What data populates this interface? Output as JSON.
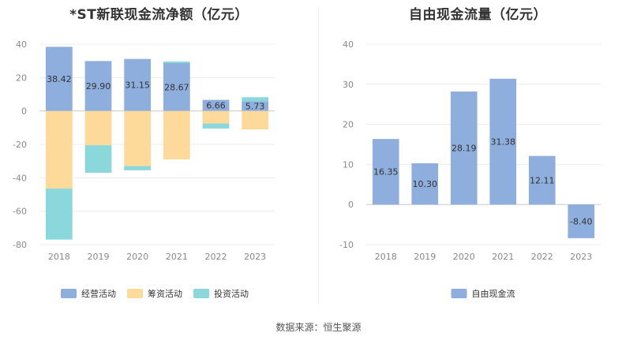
{
  "chart_data": [
    {
      "type": "bar",
      "stacked": true,
      "title": "*ST新联现金流净额（亿元）",
      "categories": [
        "2018",
        "2019",
        "2020",
        "2021",
        "2022",
        "2023"
      ],
      "ylim": [
        -80,
        40
      ],
      "yticks": [
        40,
        20,
        0,
        -20,
        -40,
        -60,
        -80
      ],
      "grid": true,
      "legend_position": "bottom",
      "series": [
        {
          "name": "经营活动",
          "color": "#8eaedd",
          "values": [
            38.42,
            29.9,
            31.15,
            28.67,
            6.66,
            5.73
          ],
          "labels": [
            "38.42",
            "29.90",
            "31.15",
            "28.67",
            "6.66",
            "5.73"
          ]
        },
        {
          "name": "筹资活动",
          "color": "#fdd99a",
          "values": [
            -46.5,
            -20.5,
            -33.0,
            -29.0,
            -7.5,
            -11.0
          ]
        },
        {
          "name": "投资活动",
          "color": "#8ad8dc",
          "values": [
            -30.5,
            -16.5,
            -2.5,
            1.0,
            -3.0,
            2.5
          ]
        }
      ]
    },
    {
      "type": "bar",
      "title": "自由现金流量（亿元）",
      "categories": [
        "2018",
        "2019",
        "2020",
        "2021",
        "2022",
        "2023"
      ],
      "ylim": [
        -10,
        40
      ],
      "yticks": [
        40,
        30,
        20,
        10,
        0,
        -10
      ],
      "grid": true,
      "legend_position": "bottom",
      "series": [
        {
          "name": "自由现金流",
          "color": "#8eaedd",
          "values": [
            16.35,
            10.3,
            28.19,
            31.38,
            12.11,
            -8.4
          ],
          "labels": [
            "16.35",
            "10.30",
            "28.19",
            "31.38",
            "12.11",
            "-8.40"
          ]
        }
      ]
    }
  ],
  "source": "数据来源：恒生聚源"
}
